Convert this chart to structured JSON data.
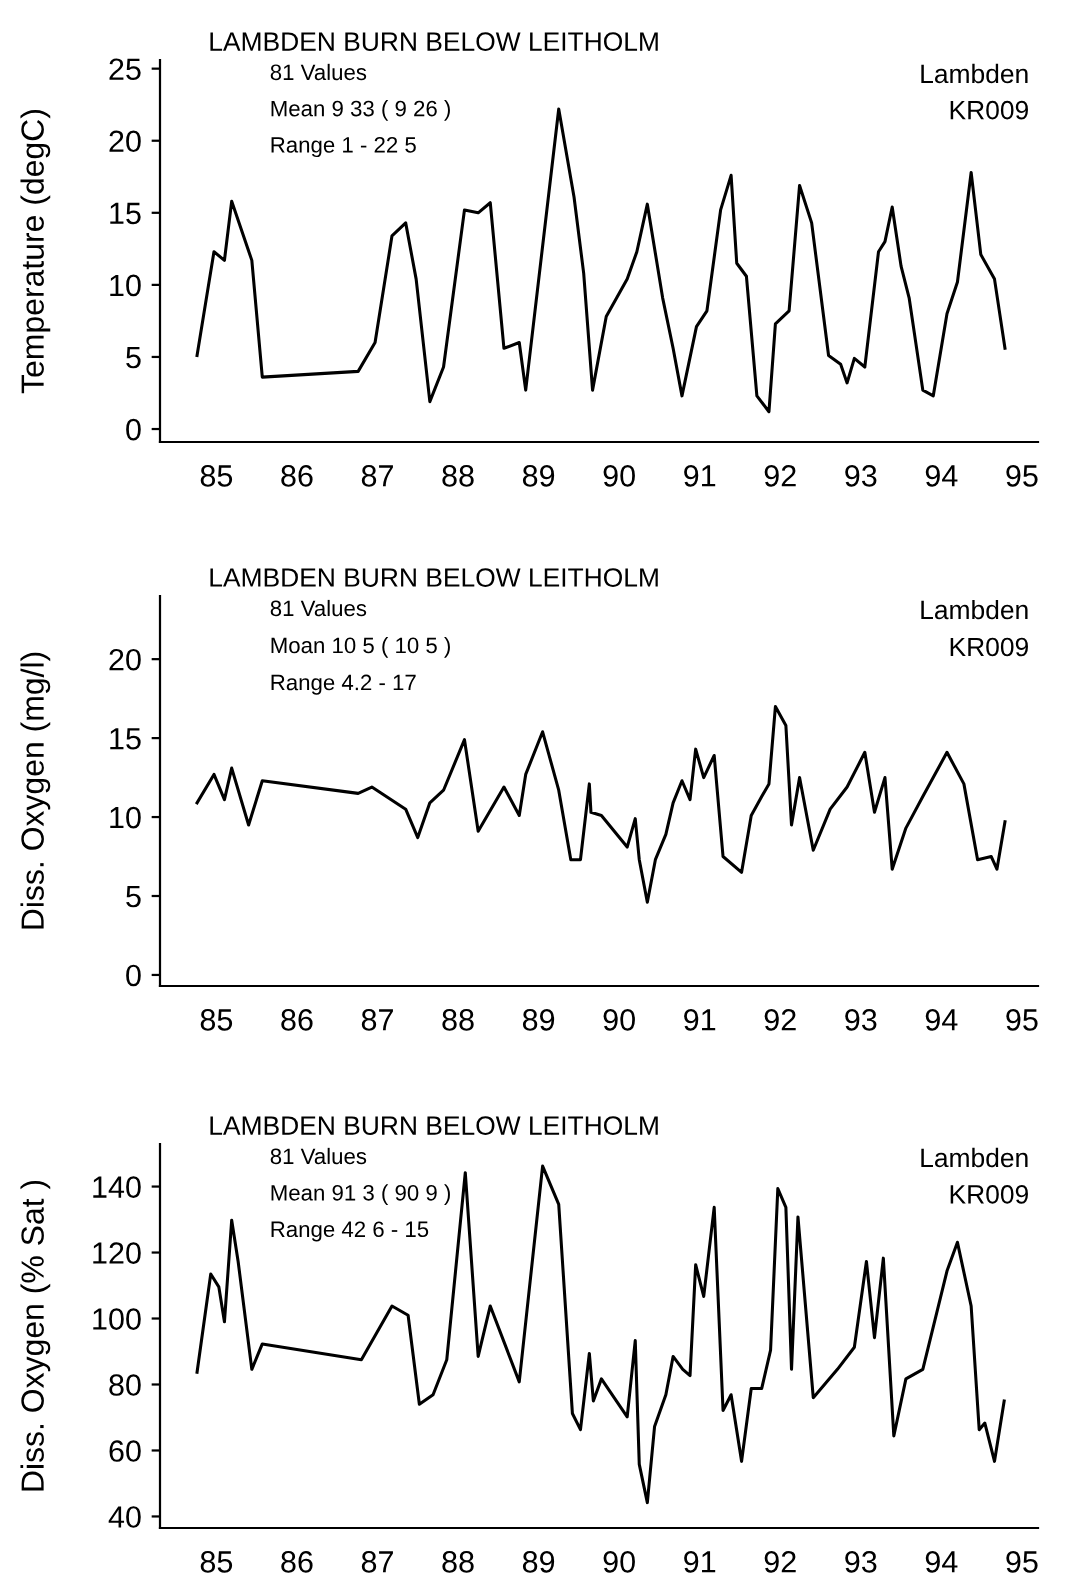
{
  "chart_data": [
    {
      "type": "line",
      "title": "LAMBDEN BURN BELOW LEITHOLM",
      "ylabel": "Temperature (degC)",
      "annotations": [
        "81 Values",
        "Mean 9 33 ( 9 26 )",
        "Range 1 - 22 5",
        "Lambden",
        "KR009"
      ],
      "xlim": [
        84.3,
        95.2
      ],
      "ylim": [
        -0.9,
        25.6
      ],
      "xticks": [
        85,
        86,
        87,
        88,
        89,
        90,
        91,
        92,
        93,
        94,
        95
      ],
      "yticks": [
        0,
        5,
        10,
        15,
        20,
        25
      ],
      "grid": false,
      "legend": false,
      "series": [
        {
          "color": "#000000",
          "x": [
            84.76,
            84.97,
            85.1,
            85.19,
            85.44,
            85.57,
            86.76,
            86.97,
            87.18,
            87.35,
            87.48,
            87.65,
            87.82,
            88.08,
            88.25,
            88.4,
            88.57,
            88.76,
            88.84,
            89.25,
            89.44,
            89.56,
            89.67,
            89.84,
            90.1,
            90.22,
            90.35,
            90.54,
            90.67,
            90.78,
            90.96,
            91.09,
            91.26,
            91.39,
            91.46,
            91.58,
            91.71,
            91.86,
            91.94,
            92.11,
            92.24,
            92.39,
            92.6,
            92.75,
            92.83,
            92.92,
            93.05,
            93.22,
            93.3,
            93.39,
            93.5,
            93.6,
            93.77,
            93.9,
            94.07,
            94.2,
            94.37,
            94.49,
            94.66,
            94.79
          ],
          "values": [
            5.1,
            12.3,
            11.7,
            15.8,
            11.7,
            3.6,
            4.0,
            6.0,
            13.4,
            14.3,
            10.4,
            1.9,
            4.3,
            15.2,
            15.0,
            15.7,
            5.6,
            6.0,
            2.7,
            22.2,
            16.1,
            10.8,
            2.7,
            7.8,
            10.4,
            12.3,
            15.6,
            9.1,
            5.6,
            2.3,
            7.1,
            8.2,
            15.2,
            17.6,
            11.5,
            10.6,
            2.3,
            1.2,
            7.3,
            8.2,
            16.9,
            14.3,
            5.1,
            4.5,
            3.2,
            4.9,
            4.3,
            12.3,
            13.0,
            15.4,
            11.3,
            9.1,
            2.7,
            2.3,
            8.0,
            10.2,
            17.8,
            12.1,
            10.4,
            5.6
          ]
        }
      ]
    },
    {
      "type": "line",
      "title": "LAMBDEN BURN BELOW LEITHOLM",
      "ylabel": "Diss. Oxygen (mg/l)",
      "annotations": [
        "81 Values",
        "Moan 10 5 ( 10 5 )",
        "Range 4.2 - 17",
        "Lambden",
        "KR009"
      ],
      "xlim": [
        84.3,
        95.2
      ],
      "ylim": [
        -0.7,
        24
      ],
      "xticks": [
        85,
        86,
        87,
        88,
        89,
        90,
        91,
        92,
        93,
        94,
        95
      ],
      "yticks": [
        0,
        5,
        10,
        15,
        20
      ],
      "grid": false,
      "legend": false,
      "series": [
        {
          "color": "#000000",
          "x": [
            84.76,
            84.97,
            85.1,
            85.19,
            85.4,
            85.57,
            86.76,
            86.93,
            87.35,
            87.5,
            87.65,
            87.82,
            88.08,
            88.25,
            88.57,
            88.76,
            88.84,
            89.05,
            89.25,
            89.4,
            89.52,
            89.63,
            89.65,
            89.78,
            90.1,
            90.2,
            90.25,
            90.35,
            90.45,
            90.58,
            90.67,
            90.78,
            90.88,
            90.95,
            91.05,
            91.18,
            91.29,
            91.52,
            91.64,
            91.77,
            91.86,
            91.94,
            92.07,
            92.14,
            92.24,
            92.41,
            92.62,
            92.83,
            93.05,
            93.17,
            93.3,
            93.39,
            93.56,
            93.77,
            94.07,
            94.28,
            94.45,
            94.62,
            94.69,
            94.79
          ],
          "values": [
            10.9,
            12.7,
            11.1,
            13.1,
            9.5,
            12.3,
            11.5,
            11.9,
            10.5,
            8.7,
            10.9,
            11.7,
            14.9,
            9.1,
            11.9,
            10.1,
            12.7,
            15.4,
            11.7,
            7.3,
            7.3,
            12.1,
            10.3,
            10.1,
            8.1,
            9.9,
            7.3,
            4.6,
            7.3,
            8.9,
            10.9,
            12.3,
            11.1,
            14.3,
            12.5,
            13.9,
            7.5,
            6.5,
            10.1,
            11.3,
            12.1,
            17.0,
            15.8,
            9.5,
            12.5,
            7.9,
            10.5,
            11.9,
            14.1,
            10.3,
            12.5,
            6.7,
            9.3,
            11.3,
            14.1,
            12.1,
            7.3,
            7.5,
            6.7,
            9.7
          ]
        }
      ]
    },
    {
      "type": "line",
      "title": "LAMBDEN BURN BELOW LEITHOLM",
      "ylabel": "Diss. Oxygen (% Sat )",
      "annotations": [
        "81 Values",
        "Mean 91 3 ( 90 9 )",
        "Range 42 6 - 15",
        "Lambden",
        "KR009"
      ],
      "xlim": [
        84.3,
        95.2
      ],
      "ylim": [
        36.5,
        152.9
      ],
      "xticks": [
        85,
        86,
        87,
        88,
        89,
        90,
        91,
        92,
        93,
        94,
        95
      ],
      "yticks": [
        40,
        60,
        80,
        100,
        120,
        140
      ],
      "grid": false,
      "legend": false,
      "series": [
        {
          "color": "#000000",
          "x": [
            84.76,
            84.93,
            85.03,
            85.1,
            85.19,
            85.27,
            85.44,
            85.57,
            86.8,
            87.18,
            87.38,
            87.52,
            87.69,
            87.86,
            88.09,
            88.25,
            88.4,
            88.76,
            89.05,
            89.25,
            89.42,
            89.52,
            89.63,
            89.68,
            89.78,
            90.1,
            90.2,
            90.25,
            90.35,
            90.44,
            90.58,
            90.67,
            90.79,
            90.88,
            90.95,
            91.05,
            91.18,
            91.29,
            91.39,
            91.52,
            91.64,
            91.77,
            91.88,
            91.97,
            92.07,
            92.14,
            92.22,
            92.41,
            92.71,
            92.92,
            93.07,
            93.17,
            93.28,
            93.41,
            93.56,
            93.77,
            94.07,
            94.2,
            94.37,
            94.47,
            94.54,
            94.66,
            94.78
          ],
          "values": [
            83.7,
            113.5,
            109.6,
            99.0,
            129.8,
            117.3,
            84.6,
            92.3,
            87.5,
            103.8,
            101.0,
            74.0,
            76.9,
            87.5,
            144.2,
            88.5,
            103.8,
            80.8,
            146.2,
            134.6,
            71.2,
            66.3,
            89.4,
            75.0,
            81.7,
            70.2,
            93.3,
            55.8,
            44.2,
            67.3,
            76.9,
            88.5,
            84.6,
            82.7,
            116.3,
            106.7,
            133.7,
            72.1,
            76.9,
            56.7,
            78.8,
            78.8,
            90.4,
            139.4,
            133.7,
            84.6,
            130.8,
            76.0,
            84.6,
            91.3,
            117.3,
            94.2,
            118.3,
            64.4,
            81.7,
            84.6,
            114.4,
            123.1,
            103.8,
            66.3,
            68.3,
            56.7,
            75.0
          ]
        }
      ]
    }
  ]
}
